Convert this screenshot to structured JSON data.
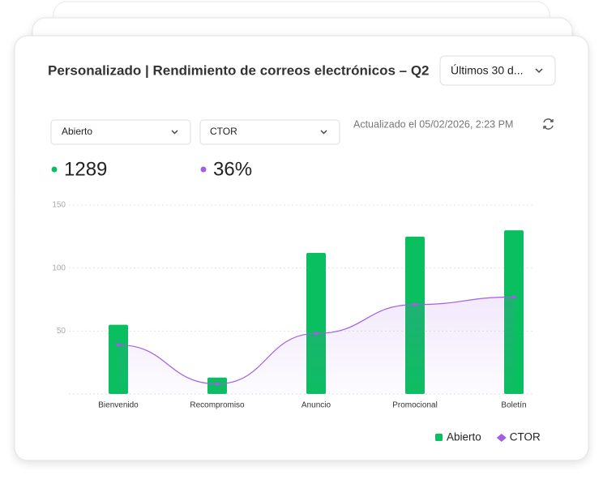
{
  "header": {
    "title": "Personalizado | Rendimiento de correos electrónicos – Q2",
    "range_select": "Últimos 30 d..."
  },
  "filters": {
    "metric_1": "Abierto",
    "metric_2": "CTOR",
    "updated": "Actualizado el 05/02/2026, 2:23 PM"
  },
  "summary": {
    "metric_1_value": "1289",
    "metric_2_value": "36%"
  },
  "chart_data": {
    "type": "bar",
    "categories": [
      "Bienvenido",
      "Recompromiso",
      "Anuncio",
      "Promocional",
      "Boletín"
    ],
    "series": [
      {
        "name": "Abierto",
        "type": "bar",
        "color": "#0abf60",
        "values": [
          55,
          13,
          112,
          125,
          130
        ]
      },
      {
        "name": "CTOR",
        "type": "line",
        "color": "#a35ee6",
        "values": [
          39,
          8,
          48,
          71,
          77
        ]
      }
    ],
    "ylim": [
      0,
      150
    ],
    "yticks": [
      50,
      100,
      150
    ],
    "grid": true,
    "legend": "bottom-right"
  }
}
